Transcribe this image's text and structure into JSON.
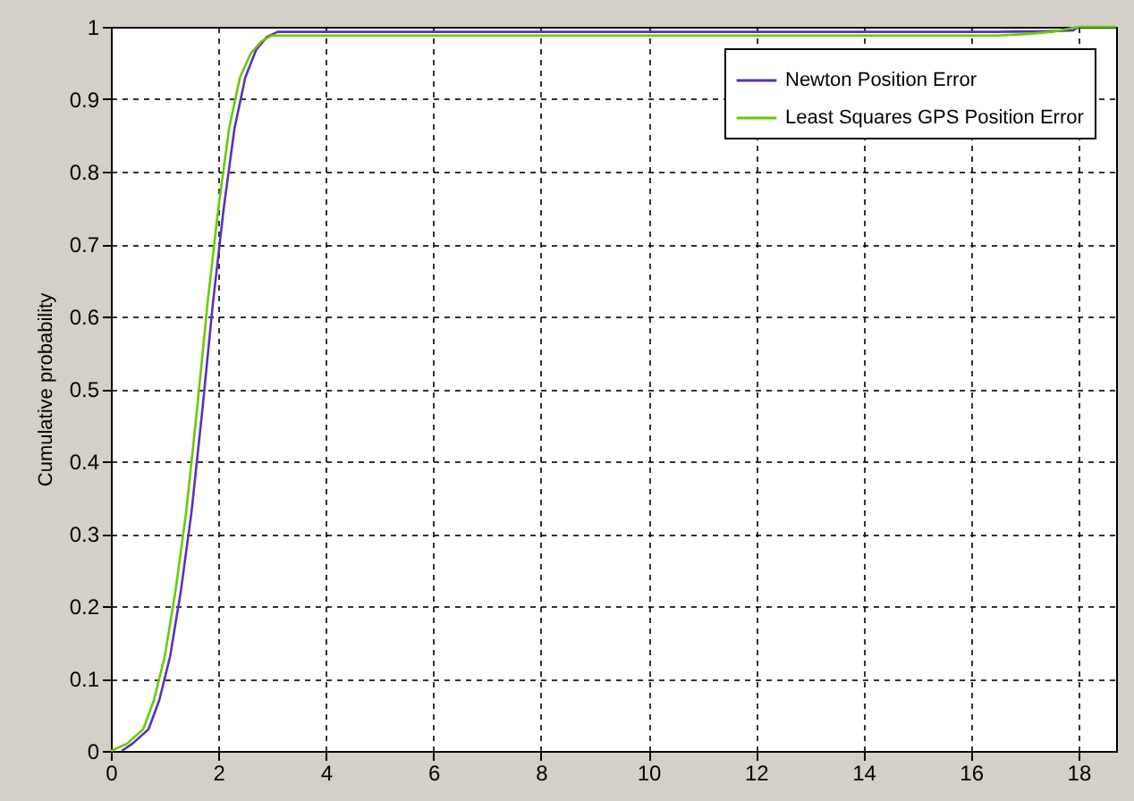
{
  "chart_data": {
    "type": "line",
    "ylabel": "Cumulative probability",
    "xlim": [
      0,
      18.7
    ],
    "xticks": [
      0,
      2,
      4,
      6,
      8,
      10,
      12,
      14,
      16,
      18
    ],
    "ylim": [
      0,
      1
    ],
    "yticks": [
      0,
      0.1,
      0.2,
      0.3,
      0.4,
      0.5,
      0.6,
      0.7,
      0.8,
      0.9,
      1
    ],
    "grid": true,
    "legend": "top right",
    "line_style": "solid",
    "marker": "none",
    "series": [
      {
        "name": "Newton Position Error",
        "color": "#5b2fbf",
        "x": [
          0.2,
          0.4,
          0.7,
          0.9,
          1.1,
          1.3,
          1.5,
          1.7,
          1.9,
          2.1,
          2.3,
          2.5,
          2.7,
          2.9,
          3.1,
          16.5,
          17.5,
          17.9,
          18.0
        ],
        "values": [
          0,
          0.01,
          0.03,
          0.07,
          0.13,
          0.22,
          0.33,
          0.47,
          0.62,
          0.75,
          0.86,
          0.93,
          0.968,
          0.986,
          0.993,
          0.993,
          0.994,
          0.995,
          1.0
        ]
      },
      {
        "name": "Least Squares GPS Position Error",
        "color": "#66cc00",
        "x": [
          0,
          0.3,
          0.6,
          0.8,
          1.0,
          1.2,
          1.4,
          1.6,
          1.8,
          2.0,
          2.2,
          2.4,
          2.6,
          2.8,
          3.0,
          16.5,
          17.0,
          17.5,
          18.0,
          18.7
        ],
        "values": [
          0,
          0.01,
          0.03,
          0.07,
          0.13,
          0.22,
          0.33,
          0.47,
          0.62,
          0.75,
          0.86,
          0.93,
          0.963,
          0.98,
          0.988,
          0.988,
          0.99,
          0.993,
          1.0,
          1.0
        ]
      }
    ]
  }
}
